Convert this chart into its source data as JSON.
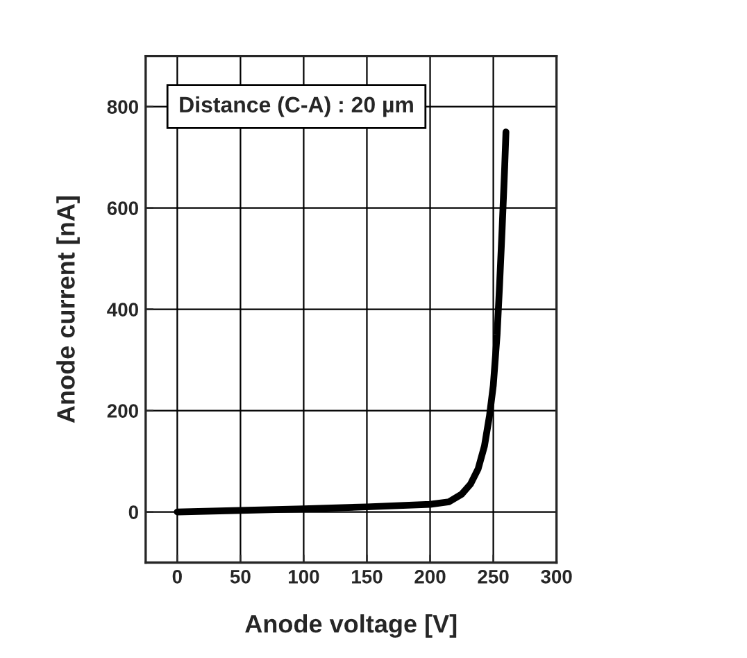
{
  "chart_data": {
    "type": "line",
    "xlabel": "Anode voltage [V]",
    "ylabel": "Anode current [nA]",
    "annotations": [
      "Distance (C-A) : 20 µm"
    ],
    "x": [
      0,
      50,
      100,
      150,
      200,
      215,
      225,
      232,
      238,
      243,
      247,
      250,
      253,
      255,
      257,
      259,
      260
    ],
    "series": [
      {
        "color": "#000000",
        "values": [
          0,
          3,
          6,
          10,
          15,
          20,
          35,
          55,
          85,
          130,
          190,
          250,
          350,
          450,
          560,
          680,
          750
        ]
      }
    ],
    "xlim": [
      -25,
      300
    ],
    "xticks": [
      0,
      50,
      100,
      150,
      200,
      250,
      300
    ],
    "ylim": [
      -100,
      900
    ],
    "yticks": [
      0,
      200,
      400,
      600,
      800
    ],
    "grid": true,
    "marker": "none",
    "line_style": "solid"
  }
}
